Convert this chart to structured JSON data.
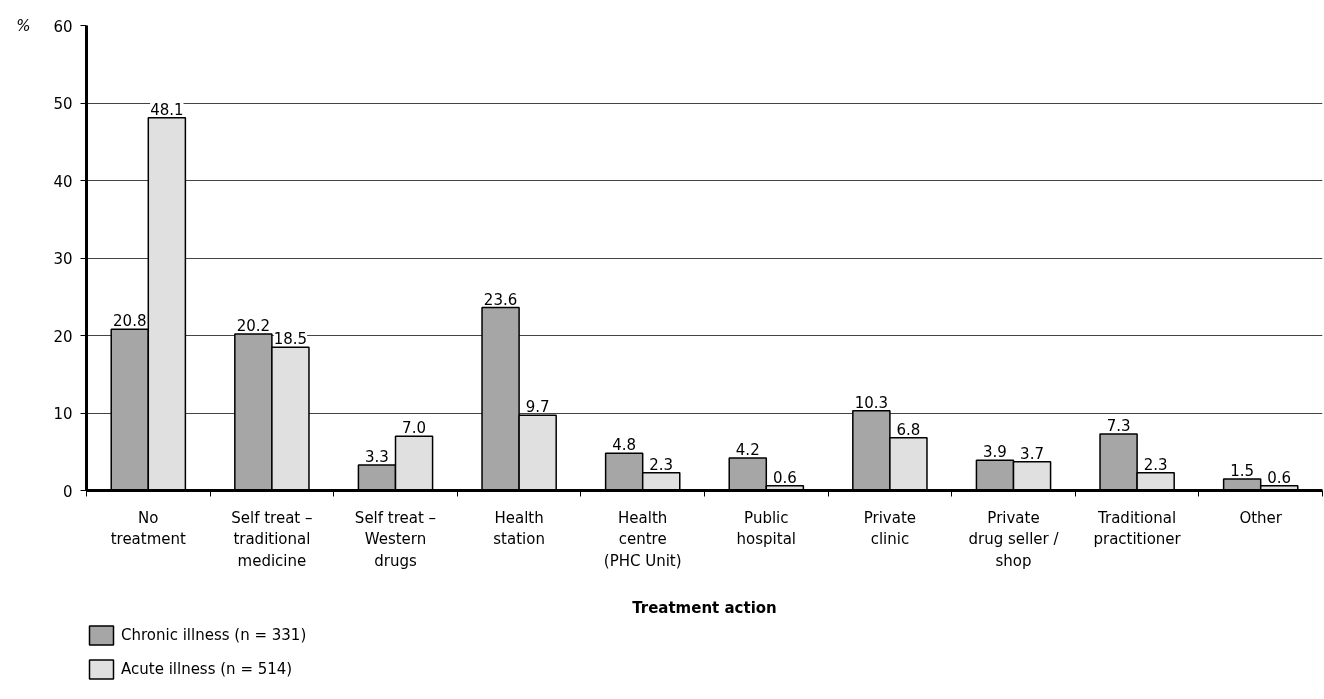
{
  "chart_data": {
    "type": "bar",
    "xlabel": "Treatment action",
    "ylabel": "%",
    "categories": [
      "No\ntreatment",
      "Self treat –\ntraditional\nmedicine",
      "Self treat –\nWestern\ndrugs",
      "Health\nstation",
      "Health\ncentre\n(PHC Unit)",
      "Public\nhospital",
      "Private\nclinic",
      "Private\ndrug seller /\nshop",
      "Traditional\npractitioner",
      "Other"
    ],
    "series": [
      {
        "name": "Chronic illness (n = 331)",
        "color": "#a6a6a6",
        "values": [
          20.8,
          20.2,
          3.3,
          23.6,
          4.8,
          4.2,
          10.3,
          3.9,
          7.3,
          1.5
        ],
        "value_labels": [
          "20.8",
          "20.2",
          "3.3",
          "23.6",
          "4.8",
          "4.2",
          "10.3",
          "3.9",
          "7.3",
          "1.5"
        ]
      },
      {
        "name": "Acute illness (n = 514)",
        "color": "#e0e0e0",
        "values": [
          48.1,
          18.5,
          7.0,
          9.7,
          2.3,
          0.6,
          6.8,
          3.7,
          2.3,
          0.6
        ],
        "value_labels": [
          "48.1",
          "18.5",
          "7.0",
          "9.7",
          "2.3",
          "0.6",
          "6.8",
          "3.7",
          "2.3",
          "0.6"
        ]
      }
    ],
    "ylim": [
      0,
      60
    ],
    "yticks": [
      0,
      10,
      20,
      30,
      40,
      50,
      60
    ],
    "grid": "y",
    "legend": "bottom left"
  }
}
